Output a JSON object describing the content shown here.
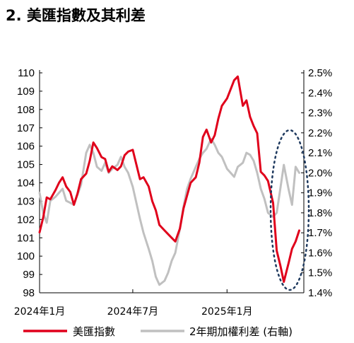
{
  "title": "2. 美匯指數及其利差",
  "chart_data": {
    "type": "line",
    "title": "2. 美匯指數及其利差",
    "x_tick_labels": [
      "2024年1月",
      "2024年7月",
      "2025年1月"
    ],
    "left_axis": {
      "min": 98,
      "max": 110,
      "ticks": [
        98,
        99,
        100,
        101,
        102,
        103,
        104,
        105,
        106,
        107,
        108,
        109,
        110
      ]
    },
    "right_axis": {
      "min": 1.4,
      "max": 2.5,
      "ticks": [
        "1.4%",
        "1.5%",
        "1.6%",
        "1.7%",
        "1.8%",
        "1.9%",
        "2.0%",
        "2.1%",
        "2.2%",
        "2.3%",
        "2.4%",
        "2.5%"
      ]
    },
    "grid": false,
    "legend_position": "bottom",
    "annotation": "dotted ellipse around recent period",
    "colors": {
      "dxy": "#e0001b",
      "spread": "#c0c0c0",
      "ellipse": "#1f3a5f"
    },
    "series": [
      {
        "name": "美匯指數",
        "axis": "left",
        "color": "#e0001b",
        "dates": [
          "2024-01-01",
          "2024-01-08",
          "2024-01-15",
          "2024-01-22",
          "2024-02-01",
          "2024-02-08",
          "2024-02-15",
          "2024-02-22",
          "2024-03-01",
          "2024-03-08",
          "2024-03-15",
          "2024-03-22",
          "2024-04-01",
          "2024-04-08",
          "2024-04-15",
          "2024-04-22",
          "2024-05-01",
          "2024-05-08",
          "2024-05-15",
          "2024-05-22",
          "2024-06-01",
          "2024-06-08",
          "2024-06-15",
          "2024-06-22",
          "2024-07-01",
          "2024-07-08",
          "2024-07-15",
          "2024-07-22",
          "2024-08-01",
          "2024-08-08",
          "2024-08-15",
          "2024-08-22",
          "2024-09-01",
          "2024-09-08",
          "2024-09-15",
          "2024-09-22",
          "2024-10-01",
          "2024-10-08",
          "2024-10-15",
          "2024-10-22",
          "2024-11-01",
          "2024-11-08",
          "2024-11-15",
          "2024-11-22",
          "2024-12-01",
          "2024-12-08",
          "2024-12-15",
          "2024-12-22",
          "2025-01-01",
          "2025-01-08",
          "2025-01-15",
          "2025-01-22",
          "2025-02-01",
          "2025-02-08",
          "2025-02-15",
          "2025-02-22",
          "2025-03-01",
          "2025-03-08",
          "2025-03-15",
          "2025-03-22",
          "2025-04-01",
          "2025-04-08",
          "2025-04-15",
          "2025-04-22",
          "2025-05-01",
          "2025-05-08",
          "2025-05-15",
          "2025-05-22"
        ],
        "values": [
          101.3,
          102.1,
          103.2,
          103.1,
          103.6,
          104.0,
          104.3,
          103.8,
          103.5,
          102.8,
          103.4,
          104.2,
          104.5,
          105.2,
          106.2,
          105.9,
          105.4,
          105.3,
          104.6,
          104.9,
          104.7,
          104.9,
          105.5,
          105.7,
          105.8,
          105.0,
          104.2,
          104.3,
          103.8,
          103.0,
          102.5,
          101.7,
          101.4,
          101.2,
          101.0,
          100.8,
          101.5,
          102.6,
          103.3,
          104.0,
          104.3,
          105.1,
          106.5,
          106.9,
          106.2,
          106.6,
          107.5,
          108.2,
          108.6,
          109.1,
          109.6,
          109.8,
          108.2,
          108.5,
          107.6,
          107.1,
          106.7,
          104.6,
          104.4,
          104.1,
          102.9,
          100.3,
          99.5,
          98.6,
          99.6,
          100.4,
          100.8,
          101.4
        ]
      },
      {
        "name": "2年期加權利差 (右軸)",
        "axis": "right",
        "color": "#c0c0c0",
        "dates": [
          "2024-01-01",
          "2024-01-08",
          "2024-01-15",
          "2024-01-22",
          "2024-02-01",
          "2024-02-08",
          "2024-02-15",
          "2024-02-22",
          "2024-03-01",
          "2024-03-08",
          "2024-03-15",
          "2024-03-22",
          "2024-04-01",
          "2024-04-08",
          "2024-04-15",
          "2024-04-22",
          "2024-05-01",
          "2024-05-08",
          "2024-05-15",
          "2024-05-22",
          "2024-06-01",
          "2024-06-08",
          "2024-06-15",
          "2024-06-22",
          "2024-07-01",
          "2024-07-08",
          "2024-07-15",
          "2024-07-22",
          "2024-08-01",
          "2024-08-08",
          "2024-08-15",
          "2024-08-22",
          "2024-09-01",
          "2024-09-08",
          "2024-09-15",
          "2024-09-22",
          "2024-10-01",
          "2024-10-08",
          "2024-10-15",
          "2024-10-22",
          "2024-11-01",
          "2024-11-08",
          "2024-11-15",
          "2024-11-22",
          "2024-12-01",
          "2024-12-08",
          "2024-12-15",
          "2024-12-22",
          "2025-01-01",
          "2025-01-08",
          "2025-01-15",
          "2025-01-22",
          "2025-02-01",
          "2025-02-08",
          "2025-02-15",
          "2025-02-22",
          "2025-03-01",
          "2025-03-08",
          "2025-03-15",
          "2025-03-22",
          "2025-04-01",
          "2025-04-08",
          "2025-04-15",
          "2025-04-22",
          "2025-05-01",
          "2025-05-08",
          "2025-05-15",
          "2025-05-22"
        ],
        "values": [
          1.9,
          1.8,
          1.75,
          1.86,
          1.88,
          1.9,
          1.92,
          1.86,
          1.85,
          1.84,
          1.89,
          1.94,
          2.1,
          2.14,
          2.1,
          2.03,
          2.01,
          2.05,
          2.0,
          2.02,
          2.04,
          2.08,
          2.03,
          2.0,
          1.93,
          1.85,
          1.77,
          1.7,
          1.62,
          1.56,
          1.48,
          1.44,
          1.46,
          1.5,
          1.56,
          1.6,
          1.72,
          1.83,
          1.92,
          1.97,
          2.03,
          2.07,
          2.1,
          2.12,
          2.17,
          2.14,
          2.1,
          2.08,
          2.02,
          2.0,
          1.98,
          2.03,
          2.05,
          2.1,
          2.09,
          2.06,
          2.0,
          1.92,
          1.87,
          1.8,
          1.78,
          1.8,
          1.92,
          2.04,
          1.92,
          1.84,
          2.03,
          2.0
        ]
      }
    ]
  }
}
